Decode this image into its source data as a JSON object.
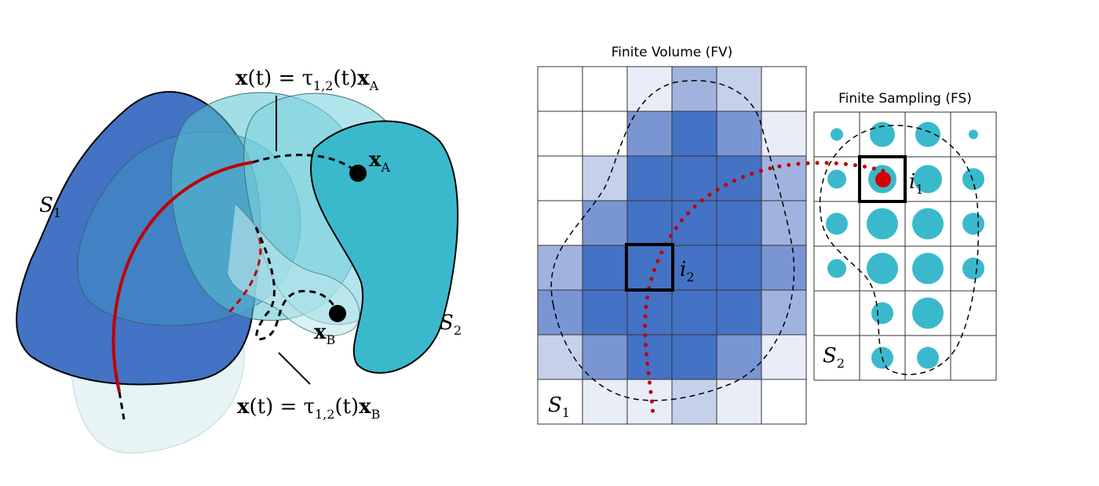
{
  "left_panel": {
    "curve_a_label": {
      "x": "x",
      "eq": "(t) = τ",
      "sub": "1,2",
      "mid": "(t)",
      "x2": "x",
      "sub2": "A"
    },
    "curve_b_label": {
      "x": "x",
      "eq": "(t) = τ",
      "sub": "1,2",
      "mid": "(t)",
      "x2": "x",
      "sub2": "B"
    },
    "shape_1": {
      "base": "S",
      "sub": "1"
    },
    "shape_2": {
      "base": "S",
      "sub": "2"
    },
    "point_a": {
      "base": "x",
      "sub": "A"
    },
    "point_b": {
      "base": "x",
      "sub": "B"
    }
  },
  "finite_volume": {
    "title": "Finite Volume (FV)",
    "shape_label": {
      "base": "S",
      "sub": "1"
    },
    "cell_label": {
      "base": "i",
      "sub": "2"
    }
  },
  "finite_sampling": {
    "title": "Finite Sampling (FS)",
    "shape_label": {
      "base": "S",
      "sub": "2"
    },
    "cell_label": {
      "base": "i",
      "sub": "1"
    }
  }
}
